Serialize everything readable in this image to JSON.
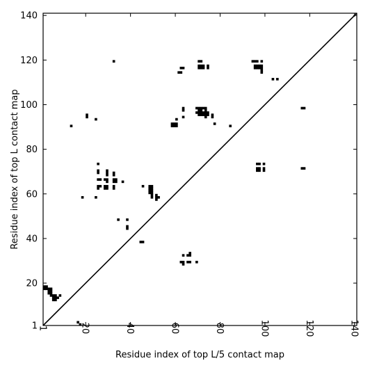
{
  "chart_data": {
    "type": "heatmap",
    "title": "",
    "xlabel": "Residue index of top L/5 contact map",
    "ylabel": "Residue index of top L contact map",
    "xlim": [
      1,
      141
    ],
    "ylim": [
      1,
      141
    ],
    "x_ticks": [
      1,
      20,
      40,
      60,
      80,
      100,
      120,
      140
    ],
    "y_ticks": [
      1,
      20,
      40,
      60,
      80,
      100,
      120,
      140
    ],
    "x_tick_labels": [
      "1",
      "20",
      "40",
      "60",
      "80",
      "100",
      "120",
      "140"
    ],
    "y_tick_labels": [
      "1",
      "20",
      "40",
      "60",
      "80",
      "100",
      "120",
      "140"
    ],
    "diagonal": true,
    "grid": false,
    "cell_color": "#000000",
    "cells": [
      [
        1,
        18
      ],
      [
        2,
        18
      ],
      [
        1,
        17
      ],
      [
        2,
        17
      ],
      [
        3,
        17
      ],
      [
        4,
        17
      ],
      [
        3,
        16
      ],
      [
        4,
        16
      ],
      [
        3,
        15
      ],
      [
        4,
        15
      ],
      [
        4,
        14
      ],
      [
        5,
        14
      ],
      [
        6,
        14
      ],
      [
        5,
        13
      ],
      [
        6,
        13
      ],
      [
        5,
        12
      ],
      [
        6,
        12
      ],
      [
        7,
        13
      ],
      [
        8,
        14
      ],
      [
        16,
        2
      ],
      [
        17,
        1
      ],
      [
        20,
        95
      ],
      [
        20,
        94
      ],
      [
        13,
        90
      ],
      [
        24,
        93
      ],
      [
        25,
        73
      ],
      [
        25,
        70
      ],
      [
        25,
        69
      ],
      [
        25,
        66
      ],
      [
        26,
        66
      ],
      [
        25,
        63
      ],
      [
        26,
        63
      ],
      [
        25,
        62
      ],
      [
        28,
        66
      ],
      [
        29,
        66
      ],
      [
        29,
        65
      ],
      [
        29,
        70
      ],
      [
        29,
        69
      ],
      [
        29,
        68
      ],
      [
        28,
        63
      ],
      [
        29,
        63
      ],
      [
        28,
        62
      ],
      [
        29,
        62
      ],
      [
        32,
        69
      ],
      [
        32,
        68
      ],
      [
        32,
        66
      ],
      [
        33,
        66
      ],
      [
        32,
        65
      ],
      [
        33,
        65
      ],
      [
        32,
        63
      ],
      [
        32,
        62
      ],
      [
        36,
        65
      ],
      [
        18,
        58
      ],
      [
        24,
        58
      ],
      [
        32,
        119
      ],
      [
        34,
        48
      ],
      [
        38,
        48
      ],
      [
        38,
        45
      ],
      [
        38,
        44
      ],
      [
        44,
        38
      ],
      [
        45,
        38
      ],
      [
        45,
        63
      ],
      [
        48,
        63
      ],
      [
        49,
        63
      ],
      [
        48,
        62
      ],
      [
        49,
        62
      ],
      [
        48,
        61
      ],
      [
        49,
        61
      ],
      [
        48,
        60
      ],
      [
        49,
        60
      ],
      [
        49,
        59
      ],
      [
        49,
        58
      ],
      [
        51,
        59
      ],
      [
        51,
        58
      ],
      [
        52,
        58
      ],
      [
        51,
        57
      ],
      [
        58,
        91
      ],
      [
        59,
        91
      ],
      [
        60,
        91
      ],
      [
        58,
        90
      ],
      [
        59,
        90
      ],
      [
        60,
        90
      ],
      [
        60,
        93
      ],
      [
        61,
        114
      ],
      [
        62,
        114
      ],
      [
        62,
        116
      ],
      [
        63,
        116
      ],
      [
        63,
        98
      ],
      [
        63,
        97
      ],
      [
        63,
        94
      ],
      [
        62,
        29
      ],
      [
        63,
        29
      ],
      [
        63,
        28
      ],
      [
        63,
        32
      ],
      [
        65,
        32
      ],
      [
        66,
        32
      ],
      [
        66,
        33
      ],
      [
        65,
        29
      ],
      [
        66,
        29
      ],
      [
        69,
        29
      ],
      [
        70,
        119
      ],
      [
        71,
        119
      ],
      [
        70,
        117
      ],
      [
        71,
        117
      ],
      [
        72,
        117
      ],
      [
        70,
        116
      ],
      [
        71,
        116
      ],
      [
        72,
        116
      ],
      [
        74,
        117
      ],
      [
        74,
        116
      ],
      [
        69,
        98
      ],
      [
        70,
        98
      ],
      [
        71,
        98
      ],
      [
        72,
        98
      ],
      [
        73,
        98
      ],
      [
        70,
        97
      ],
      [
        71,
        97
      ],
      [
        73,
        97
      ],
      [
        69,
        96
      ],
      [
        70,
        96
      ],
      [
        71,
        96
      ],
      [
        72,
        96
      ],
      [
        73,
        96
      ],
      [
        74,
        96
      ],
      [
        70,
        95
      ],
      [
        71,
        95
      ],
      [
        72,
        95
      ],
      [
        73,
        95
      ],
      [
        74,
        95
      ],
      [
        73,
        94
      ],
      [
        76,
        95
      ],
      [
        76,
        94
      ],
      [
        77,
        91
      ],
      [
        84,
        90
      ],
      [
        94,
        119
      ],
      [
        95,
        119
      ],
      [
        96,
        119
      ],
      [
        98,
        119
      ],
      [
        95,
        117
      ],
      [
        96,
        117
      ],
      [
        97,
        117
      ],
      [
        98,
        117
      ],
      [
        95,
        116
      ],
      [
        96,
        116
      ],
      [
        97,
        116
      ],
      [
        98,
        116
      ],
      [
        98,
        115
      ],
      [
        98,
        114
      ],
      [
        103,
        111
      ],
      [
        105,
        111
      ],
      [
        116,
        98
      ],
      [
        117,
        98
      ],
      [
        96,
        73
      ],
      [
        97,
        73
      ],
      [
        99,
        73
      ],
      [
        96,
        71
      ],
      [
        97,
        71
      ],
      [
        99,
        71
      ],
      [
        96,
        70
      ],
      [
        97,
        70
      ],
      [
        99,
        70
      ],
      [
        116,
        71
      ],
      [
        117,
        71
      ]
    ]
  }
}
